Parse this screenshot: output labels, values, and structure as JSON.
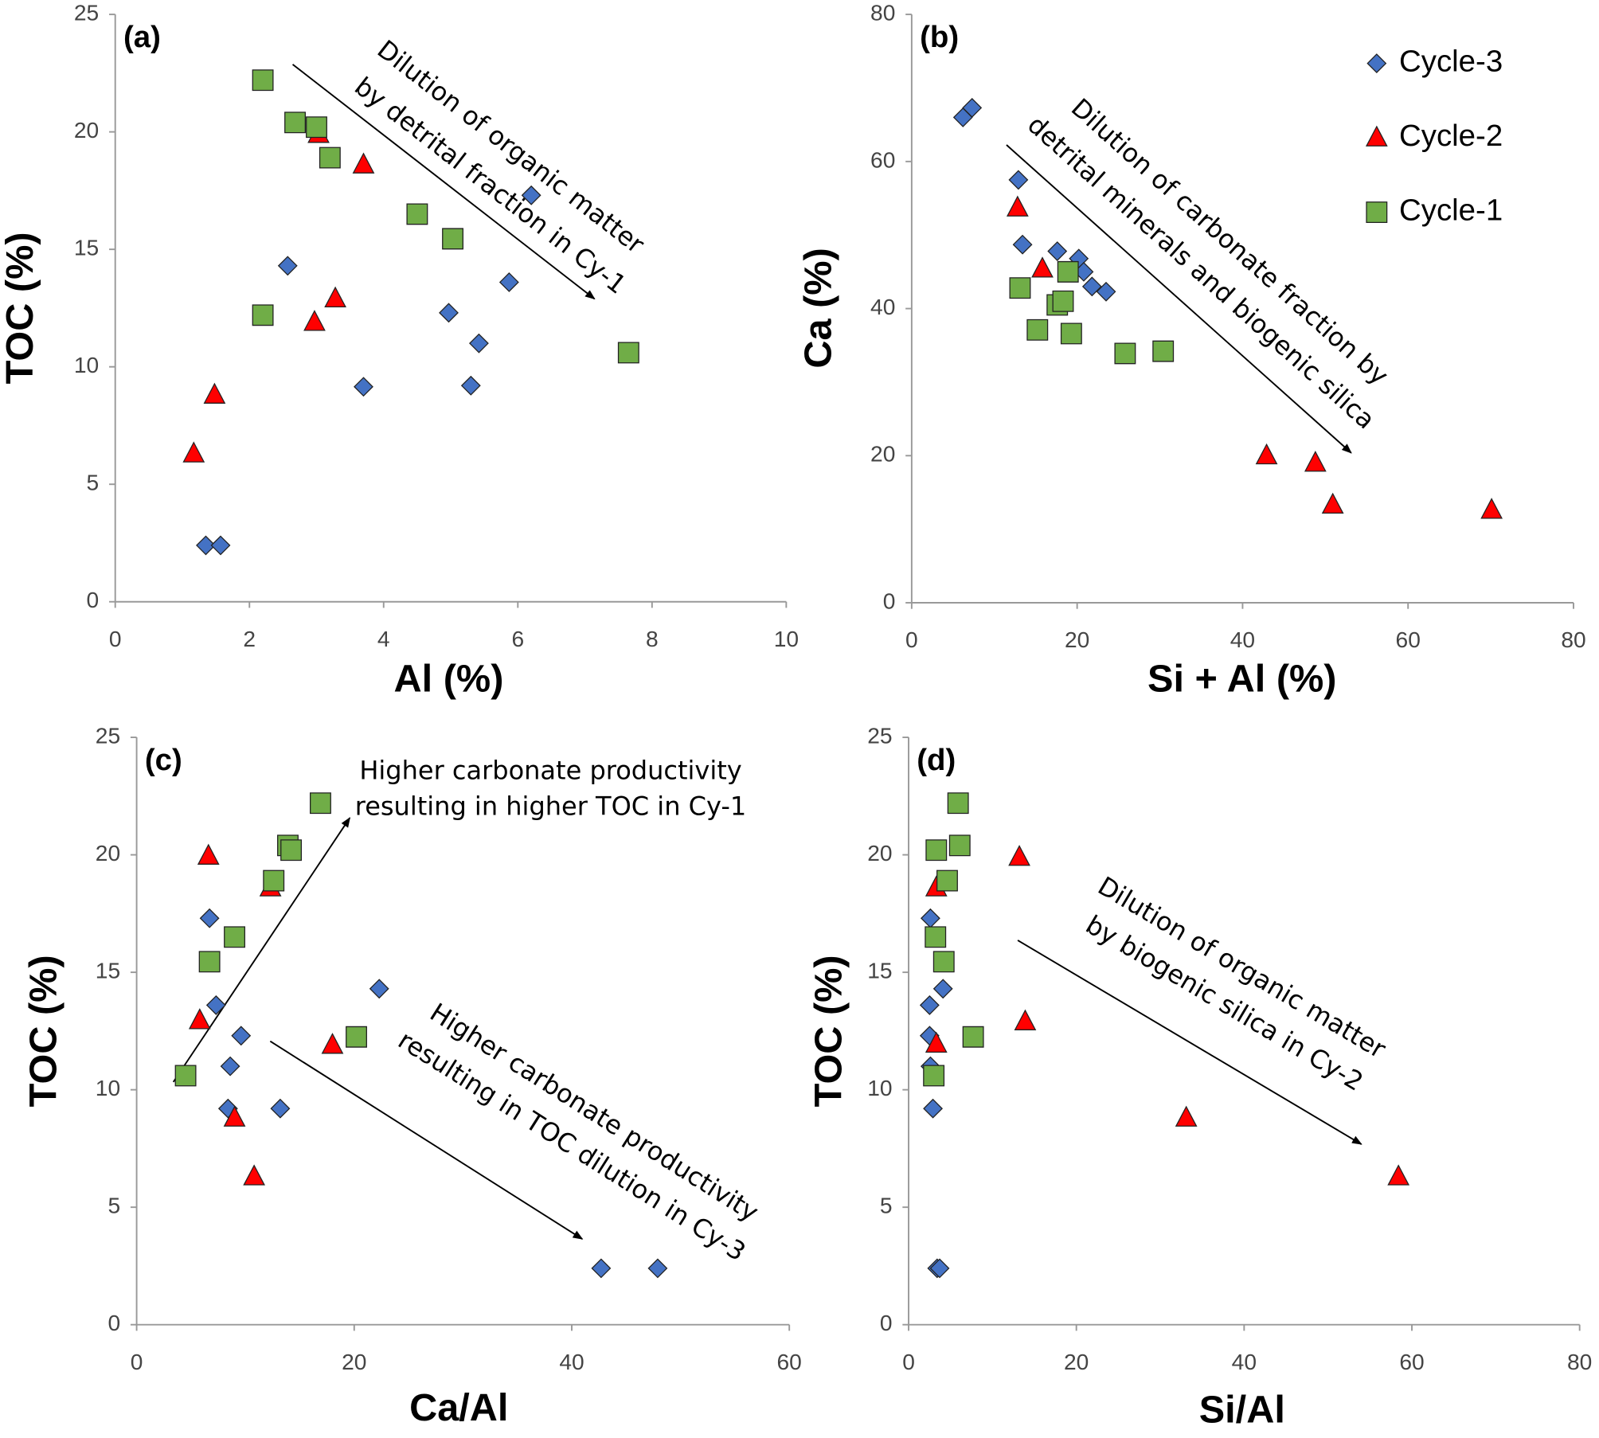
{
  "chart_data": [
    {
      "type": "scatter",
      "label": "(a)",
      "x_label": "Al (%)",
      "y_label": "TOC (%)",
      "xlim": [
        0,
        10
      ],
      "xticks": [
        0,
        2,
        4,
        6,
        8,
        10
      ],
      "ylim": [
        0,
        25
      ],
      "yticks": [
        0,
        5,
        10,
        15,
        20,
        25
      ],
      "legend": false,
      "annotations": [
        [
          "Dilution of organic matter",
          "by detrital fraction in Cy-1"
        ]
      ],
      "series": [
        {
          "name": "Cycle-3",
          "color": "#4472c4",
          "marker": "diamond",
          "x": [
            1.35,
            1.57,
            2.57,
            3.7,
            4.97,
            5.3,
            5.42,
            5.87,
            6.2
          ],
          "values": [
            2.4,
            2.4,
            14.3,
            9.15,
            12.3,
            9.2,
            11.0,
            13.6,
            17.3
          ]
        },
        {
          "name": "Cycle-2",
          "color": "#ff0000",
          "marker": "triangle",
          "x": [
            1.17,
            1.48,
            2.97,
            3.03,
            3.28,
            3.7
          ],
          "values": [
            6.3,
            8.8,
            11.9,
            19.9,
            12.9,
            18.6
          ]
        },
        {
          "name": "Cycle-1",
          "color": "#70ad47",
          "marker": "square",
          "x": [
            2.2,
            2.68,
            3.0,
            3.2,
            4.5,
            5.03,
            2.2,
            7.65
          ],
          "values": [
            22.2,
            20.4,
            20.2,
            18.9,
            16.5,
            15.45,
            12.2,
            10.6
          ]
        }
      ]
    },
    {
      "type": "scatter",
      "label": "(b)",
      "x_label": "Si + Al (%)",
      "y_label": "Ca (%)",
      "xlim": [
        0,
        80
      ],
      "xticks": [
        0,
        20,
        40,
        60,
        80
      ],
      "ylim": [
        0,
        80
      ],
      "yticks": [
        0,
        20,
        40,
        60,
        80
      ],
      "legend": true,
      "annotations": [
        [
          "Dilution of carbonate fraction by",
          "detrital minerals and biogenic silica"
        ]
      ],
      "series": [
        {
          "name": "Cycle-3",
          "color": "#4472c4",
          "marker": "diamond",
          "x": [
            6.2,
            7.3,
            12.9,
            13.4,
            17.6,
            20.2,
            20.8,
            21.8,
            23.5
          ],
          "values": [
            66,
            67.3,
            57.5,
            48.7,
            47.8,
            46.8,
            45,
            43,
            42.3
          ]
        },
        {
          "name": "Cycle-2",
          "color": "#ff0000",
          "marker": "triangle",
          "x": [
            12.8,
            15.8,
            42.9,
            48.8,
            50.9,
            70.1
          ],
          "values": [
            53.7,
            45.4,
            20,
            19,
            13.3,
            12.6
          ]
        },
        {
          "name": "Cycle-1",
          "color": "#70ad47",
          "marker": "square",
          "x": [
            13.1,
            15.2,
            17.6,
            18.3,
            18.9,
            19.3,
            25.8,
            30.4
          ],
          "values": [
            42.8,
            37.1,
            40.5,
            41,
            45,
            36.6,
            33.9,
            34.2
          ]
        }
      ]
    },
    {
      "type": "scatter",
      "label": "(c)",
      "x_label": "Ca/Al",
      "y_label": "TOC (%)",
      "xlim": [
        0,
        60
      ],
      "xticks": [
        0,
        20,
        40,
        60
      ],
      "ylim": [
        0,
        25
      ],
      "yticks": [
        0,
        5,
        10,
        15,
        20,
        25
      ],
      "legend": false,
      "annotations": [
        [
          "Higher carbonate productivity",
          "resulting in higher TOC in Cy-1"
        ],
        [
          "Higher carbonate productivity",
          "resulting in TOC dilution in Cy-3"
        ]
      ],
      "series": [
        {
          "name": "Cycle-3",
          "color": "#4472c4",
          "marker": "diamond",
          "x": [
            6.7,
            7.3,
            8.6,
            9.6,
            8.4,
            13.2,
            22.3,
            42.7,
            47.9
          ],
          "values": [
            17.3,
            13.6,
            11.0,
            12.3,
            9.2,
            9.2,
            14.3,
            2.4,
            2.4
          ]
        },
        {
          "name": "Cycle-2",
          "color": "#ff0000",
          "marker": "triangle",
          "x": [
            5.8,
            6.6,
            9.0,
            10.8,
            12.3,
            18.0
          ],
          "values": [
            12.95,
            19.95,
            8.8,
            6.3,
            18.6,
            11.9
          ]
        },
        {
          "name": "Cycle-1",
          "color": "#70ad47",
          "marker": "square",
          "x": [
            4.5,
            6.7,
            9.0,
            12.6,
            13.9,
            14.2,
            16.9,
            20.2
          ],
          "values": [
            10.6,
            15.45,
            16.5,
            18.9,
            20.4,
            20.2,
            22.2,
            12.25
          ]
        }
      ]
    },
    {
      "type": "scatter",
      "label": "(d)",
      "x_label": "Si/Al",
      "y_label": "TOC (%)",
      "xlim": [
        0,
        80
      ],
      "xticks": [
        0,
        20,
        40,
        60,
        80
      ],
      "ylim": [
        0,
        25
      ],
      "yticks": [
        0,
        5,
        10,
        15,
        20,
        25
      ],
      "legend": false,
      "annotations": [
        [
          "Dilution of organic matter",
          "by biogenic silica in Cy-2"
        ]
      ],
      "series": [
        {
          "name": "Cycle-3",
          "color": "#4472c4",
          "marker": "diamond",
          "x": [
            2.6,
            2.5,
            2.5,
            2.6,
            2.9,
            4.1,
            3.4,
            3.7
          ],
          "values": [
            17.3,
            13.6,
            12.3,
            11.0,
            9.2,
            14.3,
            2.4,
            2.4
          ]
        },
        {
          "name": "Cycle-2",
          "color": "#ff0000",
          "marker": "triangle",
          "x": [
            3.3,
            3.3,
            13.2,
            13.9,
            33.1,
            58.4
          ],
          "values": [
            18.6,
            11.95,
            19.9,
            12.9,
            8.8,
            6.3
          ]
        },
        {
          "name": "Cycle-1",
          "color": "#70ad47",
          "marker": "square",
          "x": [
            3.3,
            4.6,
            3.2,
            4.2,
            5.9,
            6.1,
            3.0,
            7.7
          ],
          "values": [
            20.2,
            18.9,
            16.5,
            15.45,
            22.2,
            20.4,
            10.6,
            12.25
          ]
        }
      ]
    }
  ]
}
